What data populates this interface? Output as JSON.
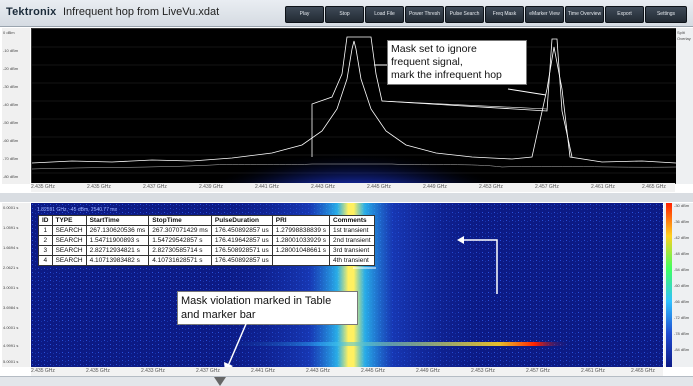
{
  "app": {
    "brand": "Tektronix",
    "title": "Infrequent hop from LiveVu.xdat"
  },
  "toolbar": [
    "Play",
    "Stop",
    "Load File",
    "Power Thresh",
    "Pulse Search",
    "Freq Mask",
    "eMarker View",
    "Time Overview",
    "Export",
    "Settings"
  ],
  "spectrum": {
    "y_labels": [
      "0 dBm",
      "-10 dBm",
      "-20 dBm",
      "-30 dBm",
      "-40 dBm",
      "-50 dBm",
      "-60 dBm",
      "-70 dBm",
      "-80 dBm"
    ],
    "x_labels": [
      "2.435 GHz",
      "2.435 GHz",
      "2.437 GHz",
      "2.439 GHz",
      "2.441 GHz",
      "2.443 GHz",
      "2.445 GHz",
      "2.449 GHz",
      "2.453 GHz",
      "2.457 GHz",
      "2.461 GHz",
      "2.465 GHz"
    ],
    "right_labels": [
      "Split",
      "Overlay"
    ]
  },
  "spectrogram": {
    "header": "1.82591 GHz, -45 dBm, 2540.77 ms",
    "y_labels": [
      "0.0001 s",
      "1.0591 s",
      "1.6694 s",
      "2.0621 s",
      "3.0001 s",
      "3.6984 s",
      "4.0001 s",
      "4.9991 s",
      "5.0001 s"
    ],
    "right_labels": [
      "-30 dBm",
      "-36 dBm",
      "-42 dBm",
      "-48 dBm",
      "-54 dBm",
      "-60 dBm",
      "-66 dBm",
      "-72 dBm",
      "-78 dBm",
      "-84 dBm"
    ],
    "x_labels": [
      "2.435 GHz",
      "2.435 GHz",
      "2.433 GHz",
      "2.437 GHz",
      "2.441 GHz",
      "2.443 GHz",
      "2.445 GHz",
      "2.449 GHz",
      "2.453 GHz",
      "2.457 GHz",
      "2.461 GHz",
      "2.465 GHz"
    ]
  },
  "table": {
    "headers": [
      "ID",
      "TYPE",
      "StartTime",
      "StopTime",
      "PulseDuration",
      "PRI",
      "Comments"
    ],
    "rows": [
      [
        "1",
        "SEARCH",
        "267.130620536 ms",
        "267.307071429 ms",
        "176.450892857 us",
        "1.27998838839 s",
        "1st transient"
      ],
      [
        "2",
        "SEARCH",
        "1.54711900893 s",
        "1.54729542857 s",
        "176.419642857 us",
        "1.28001033929 s",
        "2nd transient"
      ],
      [
        "3",
        "SEARCH",
        "2.82712934821 s",
        "2.82730585714 s",
        "176.508928571 us",
        "1.28001048661 s",
        "3rd transient"
      ],
      [
        "4",
        "SEARCH",
        "4.10713983482 s",
        "4.10731628571 s",
        "176.450892857 us",
        "",
        "4th transient"
      ]
    ]
  },
  "callouts": {
    "mask": [
      "Mask set to ignore",
      "frequent signal,",
      "mark the infrequent hop"
    ],
    "violation": [
      "Mask violation marked in Table",
      "and marker bar"
    ]
  },
  "colors": {
    "trace": "#ffffff",
    "mask": "#ffffff",
    "spectrogram_bg": "#0c1a85",
    "hot": "#ff2000"
  }
}
